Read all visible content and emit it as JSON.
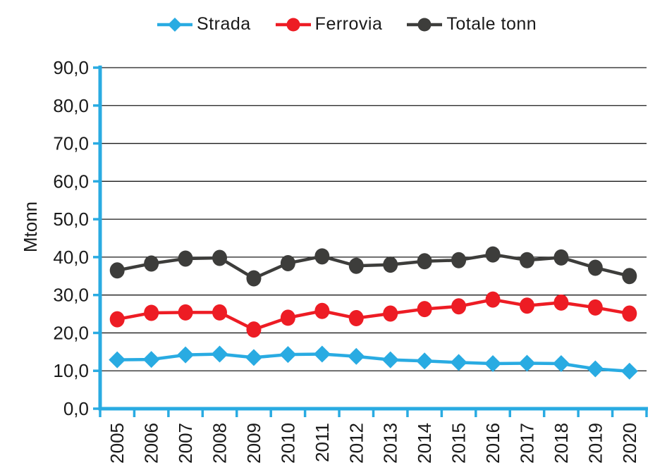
{
  "chart_data": {
    "type": "line",
    "title": "",
    "xlabel": "",
    "ylabel": "Mtonn",
    "ylim": [
      0,
      90
    ],
    "ytick_step": 10,
    "ytick_labels": [
      "0,0",
      "10,0",
      "20,0",
      "30,0",
      "40,0",
      "50,0",
      "60,0",
      "70,0",
      "80,0",
      "90,0"
    ],
    "grid": "horizontal",
    "legend_position": "top",
    "axis_color": "#29ABE2",
    "gridline_color": "#1a1a1a",
    "text_color": "#1a1a1a",
    "categories": [
      "2005",
      "2006",
      "2007",
      "2008",
      "2009",
      "2010",
      "2011",
      "2012",
      "2013",
      "2014",
      "2015",
      "2016",
      "2017",
      "2018",
      "2019",
      "2020"
    ],
    "series": [
      {
        "name": "Strada",
        "color": "#29ABE2",
        "marker": "diamond",
        "values": [
          12.9,
          13.0,
          14.2,
          14.4,
          13.5,
          14.3,
          14.4,
          13.8,
          12.9,
          12.6,
          12.2,
          11.9,
          12.0,
          11.9,
          10.5,
          9.9
        ]
      },
      {
        "name": "Ferrovia",
        "color": "#ED1C24",
        "marker": "circle",
        "values": [
          23.6,
          25.3,
          25.4,
          25.4,
          20.9,
          24.0,
          25.8,
          23.9,
          25.1,
          26.3,
          27.0,
          28.8,
          27.2,
          28.0,
          26.7,
          25.1
        ]
      },
      {
        "name": "Totale tonn",
        "color": "#3D3D3B",
        "marker": "circle",
        "values": [
          36.5,
          38.3,
          39.6,
          39.8,
          34.4,
          38.4,
          40.2,
          37.7,
          38.0,
          38.9,
          39.2,
          40.7,
          39.2,
          39.9,
          37.2,
          35.0
        ]
      }
    ]
  }
}
